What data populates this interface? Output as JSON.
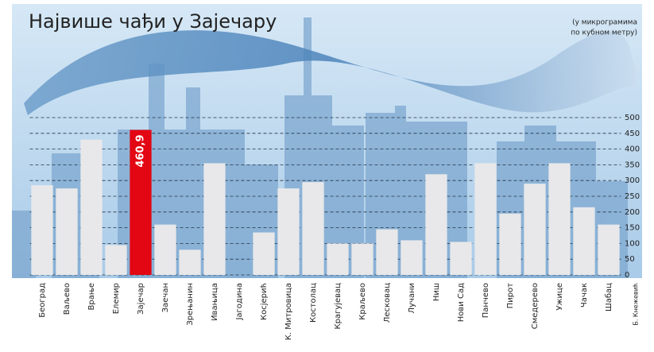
{
  "chart_data": {
    "type": "bar",
    "title": "Највише чађи у Зајечару",
    "unit_note_lines": [
      "(у микрограмима",
      "по кубном метру)"
    ],
    "credit": "Б. Кнежевић",
    "categories": [
      "Београд",
      "Ваљево",
      "Врање",
      "Елемир",
      "Зајечар",
      "Заечан",
      "Зрењанин",
      "Ивањица",
      "Јагодина",
      "Косјерић",
      "К. Митровица",
      "Костолац",
      "Крагујевац",
      "Краљево",
      "Лесковац",
      "Лучани",
      "Ниш",
      "Нови Сад",
      "Панчево",
      "Пирот",
      "Смедерево",
      "Ужице",
      "Чачак",
      "Шабац"
    ],
    "values": [
      285,
      275,
      430,
      95,
      460.9,
      160,
      80,
      355,
      null,
      135,
      275,
      295,
      100,
      100,
      145,
      110,
      320,
      105,
      355,
      195,
      290,
      355,
      215,
      160
    ],
    "value_labels": [
      null,
      null,
      null,
      null,
      "460,9",
      null,
      null,
      null,
      null,
      null,
      null,
      null,
      null,
      null,
      null,
      null,
      null,
      null,
      null,
      null,
      null,
      null,
      null,
      null
    ],
    "color": "#e8e8ea",
    "highlight_index": 4,
    "highlight_color": "#e30613",
    "ylim": [
      0,
      500
    ],
    "yticks": [
      0,
      50,
      100,
      150,
      200,
      250,
      300,
      350,
      400,
      450,
      500
    ],
    "grid": true
  }
}
